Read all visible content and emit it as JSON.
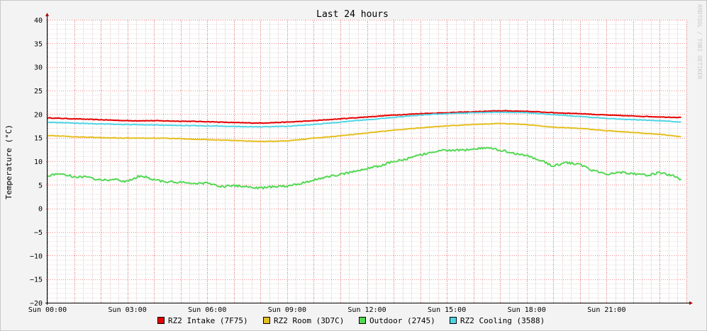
{
  "chart_data": {
    "type": "line",
    "title": "Last 24 hours",
    "ylabel": "Temperature (°C)",
    "xlabel": "",
    "watermark": "RRDTOOL / TOBI OETIKER",
    "ylim": [
      -20,
      40
    ],
    "yticks": [
      -20,
      -15,
      -10,
      -5,
      0,
      5,
      10,
      15,
      20,
      25,
      30,
      35,
      40
    ],
    "xlim": [
      0,
      24
    ],
    "xticks": [
      {
        "t": 0,
        "label": "Sun 00:00"
      },
      {
        "t": 3,
        "label": "Sun 03:00"
      },
      {
        "t": 6,
        "label": "Sun 06:00"
      },
      {
        "t": 9,
        "label": "Sun 09:00"
      },
      {
        "t": 12,
        "label": "Sun 12:00"
      },
      {
        "t": 15,
        "label": "Sun 15:00"
      },
      {
        "t": 18,
        "label": "Sun 18:00"
      },
      {
        "t": 21,
        "label": "Sun 21:00"
      }
    ],
    "grid": true,
    "legend_position": "bottom",
    "series": [
      {
        "name": "RZ2 Intake (7F75)",
        "color": "#e50000",
        "x": [
          0,
          1,
          2,
          3,
          4,
          5,
          6,
          7,
          8,
          9,
          10,
          11,
          12,
          13,
          14,
          15,
          16,
          17,
          18,
          19,
          20,
          21,
          22,
          23,
          23.8
        ],
        "y": [
          19.2,
          19.0,
          18.8,
          18.6,
          18.6,
          18.5,
          18.4,
          18.2,
          18.1,
          18.3,
          18.6,
          19.0,
          19.4,
          19.8,
          20.1,
          20.3,
          20.5,
          20.7,
          20.6,
          20.3,
          20.1,
          19.8,
          19.6,
          19.4,
          19.3
        ]
      },
      {
        "name": "RZ2 Room (3D7C)",
        "color": "#e5bf1f",
        "x": [
          0,
          1,
          2,
          3,
          4,
          5,
          6,
          7,
          8,
          9,
          10,
          11,
          12,
          13,
          14,
          15,
          16,
          17,
          18,
          19,
          20,
          21,
          22,
          23,
          23.8
        ],
        "y": [
          15.5,
          15.2,
          15.0,
          14.9,
          14.9,
          14.8,
          14.6,
          14.4,
          14.2,
          14.3,
          14.9,
          15.4,
          16.0,
          16.6,
          17.1,
          17.5,
          17.8,
          18.0,
          17.8,
          17.2,
          17.0,
          16.5,
          16.1,
          15.7,
          15.2
        ]
      },
      {
        "name": "Outdoor (2745)",
        "color": "#54d854",
        "x": [
          0,
          0.5,
          1,
          1.5,
          2,
          2.5,
          3,
          3.5,
          4,
          4.5,
          5,
          5.5,
          6,
          6.5,
          7,
          7.5,
          8,
          8.5,
          9,
          9.5,
          10,
          10.5,
          11,
          11.5,
          12,
          12.5,
          13,
          13.5,
          14,
          14.5,
          15,
          15.5,
          16,
          16.5,
          17,
          17.5,
          18,
          18.5,
          19,
          19.5,
          20,
          20.5,
          21,
          21.5,
          22,
          22.5,
          23,
          23.5,
          23.8
        ],
        "y": [
          6.9,
          7.4,
          6.7,
          6.6,
          6.0,
          6.1,
          5.7,
          7.0,
          6.1,
          5.6,
          5.5,
          5.3,
          5.4,
          4.6,
          4.8,
          4.6,
          4.3,
          4.6,
          4.8,
          5.3,
          6.0,
          6.7,
          7.2,
          7.8,
          8.5,
          9.0,
          10.0,
          10.5,
          11.3,
          12.0,
          12.4,
          12.3,
          12.6,
          12.8,
          12.4,
          11.7,
          11.2,
          10.2,
          9.0,
          9.7,
          9.3,
          8.0,
          7.3,
          7.7,
          7.4,
          7.0,
          7.6,
          6.9,
          6.1
        ]
      },
      {
        "name": "RZ2 Cooling (3588)",
        "color": "#4fd5e5",
        "x": [
          0,
          1,
          2,
          3,
          4,
          5,
          6,
          7,
          8,
          9,
          10,
          11,
          12,
          13,
          14,
          15,
          16,
          17,
          18,
          19,
          20,
          21,
          22,
          23,
          23.8
        ],
        "y": [
          18.3,
          18.1,
          17.9,
          17.8,
          17.7,
          17.6,
          17.5,
          17.4,
          17.3,
          17.4,
          17.8,
          18.3,
          18.8,
          19.3,
          19.8,
          20.1,
          20.3,
          20.4,
          20.3,
          19.9,
          19.5,
          19.1,
          18.8,
          18.6,
          18.3
        ]
      }
    ]
  }
}
